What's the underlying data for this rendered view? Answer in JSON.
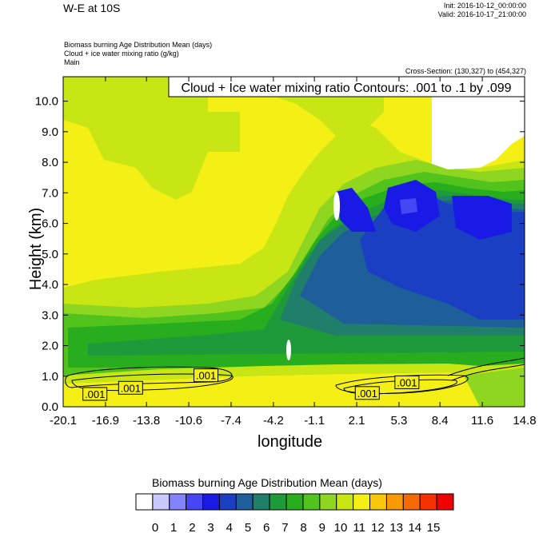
{
  "header": {
    "title": "W-E at 10S",
    "init": "Init: 2016-10-12_00:00:00",
    "valid": "Valid: 2016-10-17_21:00:00",
    "fields": [
      "Biomass burning Age Distribution Mean   (days)",
      "Cloud + ice water mixing ratio   (g/kg)",
      "Main"
    ],
    "cross_section": "Cross-Section: (130,327) to (454,327)"
  },
  "chart_data": {
    "type": "heatmap",
    "title": "W-E at 10S",
    "xlabel": "longitude",
    "ylabel": "Height (km)",
    "x_ticks": [
      "-20.1",
      "-16.9",
      "-13.8",
      "-10.6",
      "-7.4",
      "-4.2",
      "-1.1",
      "2.1",
      "5.3",
      "8.4",
      "11.6",
      "14.8"
    ],
    "xlim": [
      -20.1,
      14.8
    ],
    "y_ticks": [
      "0.0",
      "1.0",
      "2.0",
      "3.0",
      "4.0",
      "5.0",
      "6.0",
      "7.0",
      "8.0",
      "9.0",
      "10.0"
    ],
    "ylim": [
      0,
      10.8
    ],
    "contour_info": "Cloud + Ice water mixing ratio Contours: .001 to .1 by .099",
    "contour_labels": [
      {
        "text": ".001",
        "lon": -17.7,
        "height": 0.42
      },
      {
        "text": ".001",
        "lon": -15.0,
        "height": 0.62
      },
      {
        "text": ".001",
        "lon": -9.3,
        "height": 1.03
      },
      {
        "text": ".001",
        "lon": 2.9,
        "height": 0.45
      },
      {
        "text": ".001",
        "lon": 5.9,
        "height": 0.8
      }
    ],
    "colorbar": {
      "title": "Biomass burning Age Distribution Mean  (days)",
      "labels": [
        "0",
        "1",
        "2",
        "3",
        "4",
        "5",
        "6",
        "7",
        "8",
        "9",
        "10",
        "11",
        "12",
        "13",
        "14",
        "15"
      ],
      "colors": [
        "#ffffff",
        "#c9c9ff",
        "#8383ff",
        "#4646f4",
        "#1a1ae6",
        "#1a3fc2",
        "#1e5e9a",
        "#1f7f6a",
        "#1f9a3a",
        "#27ad1e",
        "#52c21c",
        "#8ed620",
        "#c8e514",
        "#f4f016",
        "#f8c80a",
        "#f79a06",
        "#f56a04",
        "#f43202",
        "#f00000"
      ]
    }
  }
}
